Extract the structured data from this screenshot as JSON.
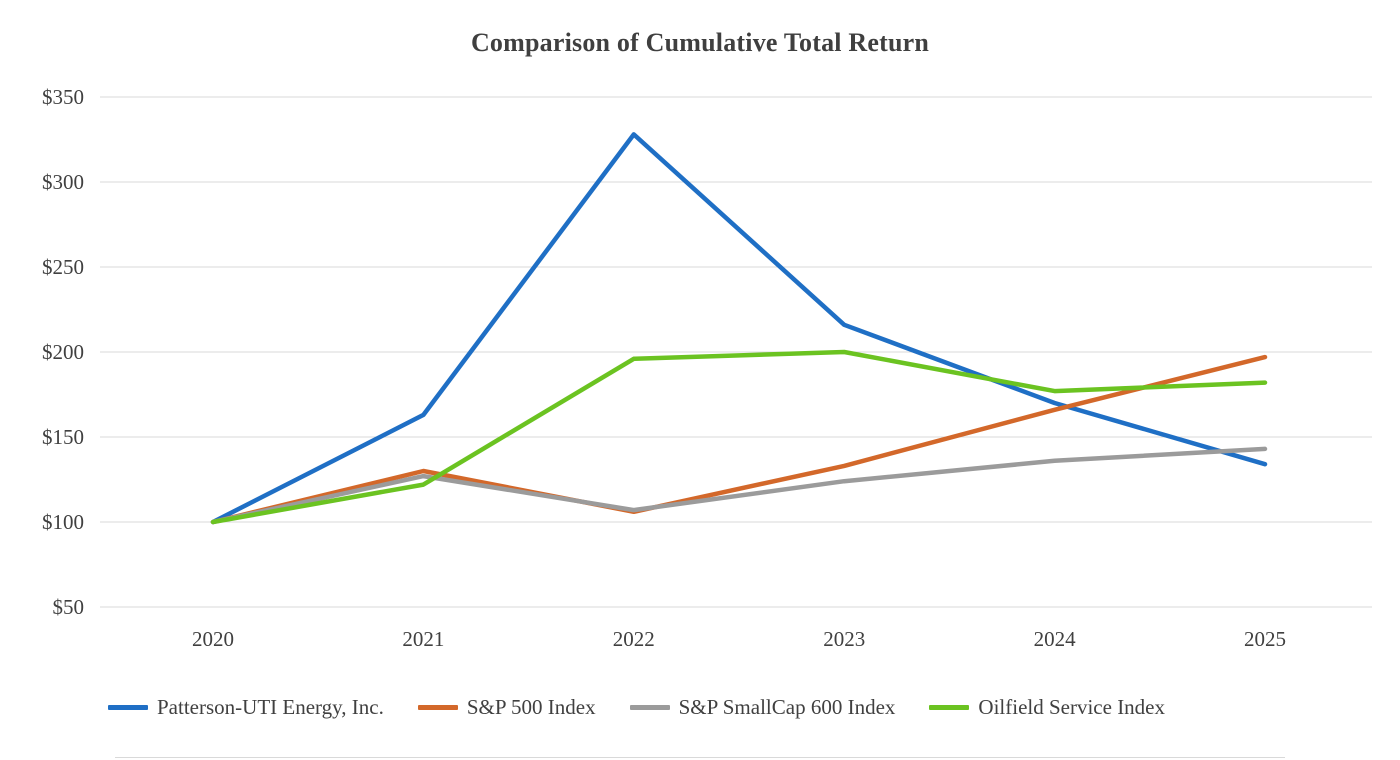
{
  "chart_data": {
    "type": "line",
    "title": "Comparison of Cumulative Total Return",
    "x_labels": [
      "2020",
      "2021",
      "2022",
      "2023",
      "2024",
      "2025"
    ],
    "y_ticks": [
      350,
      300,
      250,
      200,
      150,
      100,
      50
    ],
    "y_tick_labels": [
      "$350",
      "$300",
      "$250",
      "$200",
      "$150",
      "$100",
      "$50"
    ],
    "ylim": [
      50,
      350
    ],
    "grid": "horizontal",
    "gridline_color": "#d9d9d9",
    "text_color": "#404040",
    "legend_position": "bottom",
    "line_width": 4.5,
    "series": [
      {
        "name": "Patterson-UTI Energy, Inc.",
        "color": "#1F6FC5",
        "values": [
          100,
          163,
          328,
          216,
          170,
          134
        ]
      },
      {
        "name": "S&P 500 Index",
        "color": "#D3682A",
        "values": [
          100,
          130,
          106,
          133,
          166,
          197
        ]
      },
      {
        "name": "S&P SmallCap 600 Index",
        "color": "#9B9B9B",
        "values": [
          100,
          127,
          107,
          124,
          136,
          143
        ]
      },
      {
        "name": "Oilfield Service Index",
        "color": "#6BC321",
        "values": [
          100,
          122,
          196,
          200,
          177,
          182
        ]
      }
    ]
  }
}
